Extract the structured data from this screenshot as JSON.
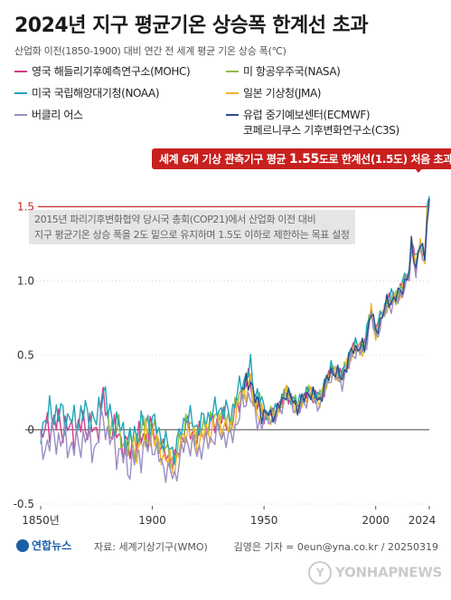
{
  "header": {
    "title": "2024년 지구 평균기온 상승폭 한계선 초과",
    "subtitle": "산업화 이전(1850-1900) 대비 연간 전 세계 평균 기온 상승 폭(℃)"
  },
  "legend": [
    {
      "label": "영국 해들리기후예측연구소(MOHC)",
      "color": "#d6398c"
    },
    {
      "label": "미 항공우주국(NASA)",
      "color": "#8fbd4a"
    },
    {
      "label": "미국 국립해양대기청(NOAA)",
      "color": "#1fa6b8"
    },
    {
      "label": "일본 기상청(JMA)",
      "color": "#f0b429"
    },
    {
      "label": "버클리 어스",
      "color": "#9b8ec4"
    },
    {
      "label": "유럽 중기예보센터(ECMWF)",
      "label2": "코페르니쿠스 기후변화연구소(C3S)",
      "color": "#2a4f8e"
    }
  ],
  "callout": {
    "pre": "세계 6개 기상 관측기구 평균 ",
    "value": "1.55",
    "post": "도로 한계선(1.5도) 처음 초과"
  },
  "note": {
    "line1": "2015년 파리기후변화협약 당시국 총회(COP21)에서 산업화 이전 대비",
    "line2": "지구 평균기온 상승 폭을 2도 밑으로 유지하며 1.5도 이하로 제한하는 목표 설정"
  },
  "footer": {
    "logo": "연합뉴스",
    "source": "자료: 세계기상기구(WMO)",
    "credit": "김영은 기자 = 0eun@yna.co.kr / 20250319",
    "watermark": "YONHAPNEWS"
  },
  "chart_data": {
    "type": "line",
    "x_range": [
      1850,
      2024
    ],
    "ylim": [
      -0.5,
      1.6
    ],
    "y_ticks": [
      {
        "value": 1.5,
        "label": "1.5"
      },
      {
        "value": 1.0,
        "label": "1.0"
      },
      {
        "value": 0.5,
        "label": "0.5"
      },
      {
        "value": 0.0,
        "label": "0"
      },
      {
        "value": -0.5,
        "label": "-0.5"
      }
    ],
    "x_ticks": [
      {
        "value": 1850,
        "label": "1850년"
      },
      {
        "value": 1900,
        "label": "1900"
      },
      {
        "value": 1950,
        "label": "1950"
      },
      {
        "value": 2000,
        "label": "2000"
      },
      {
        "value": 2024,
        "label": "2024"
      }
    ],
    "threshold": {
      "value": 1.5,
      "color": "#c8201e"
    },
    "base_series": {
      "x": [
        1850,
        1855,
        1860,
        1865,
        1870,
        1875,
        1878,
        1880,
        1885,
        1890,
        1895,
        1900,
        1905,
        1910,
        1915,
        1920,
        1925,
        1930,
        1935,
        1940,
        1944,
        1945,
        1950,
        1955,
        1960,
        1965,
        1970,
        1975,
        1980,
        1985,
        1990,
        1995,
        1998,
        2000,
        2005,
        2010,
        2015,
        2016,
        2018,
        2020,
        2022,
        2023,
        2024
      ],
      "values": [
        -0.05,
        0.05,
        0.03,
        -0.02,
        0.05,
        -0.03,
        0.22,
        0.05,
        -0.05,
        -0.15,
        -0.05,
        0.0,
        -0.15,
        -0.22,
        0.03,
        -0.05,
        0.02,
        0.08,
        0.03,
        0.25,
        0.35,
        0.22,
        0.1,
        0.1,
        0.25,
        0.15,
        0.25,
        0.2,
        0.4,
        0.35,
        0.55,
        0.55,
        0.8,
        0.65,
        0.85,
        0.9,
        1.05,
        1.25,
        1.1,
        1.25,
        1.15,
        1.45,
        1.55
      ]
    },
    "series": [
      {
        "name": "영국 해들리기후예측연구소(MOHC)",
        "color": "#d6398c",
        "start": 1850,
        "offset": 0.0
      },
      {
        "name": "미 항공우주국(NASA)",
        "color": "#8fbd4a",
        "start": 1880,
        "offset": 0.02
      },
      {
        "name": "미국 국립해양대기청(NOAA)",
        "color": "#1fa6b8",
        "start": 1850,
        "offset": 0.07
      },
      {
        "name": "일본 기상청(JMA)",
        "color": "#f0b429",
        "start": 1891,
        "offset": -0.03
      },
      {
        "name": "버클리 어스",
        "color": "#9b8ec4",
        "start": 1850,
        "offset": -0.1
      },
      {
        "name": "유럽 중기예보센터(ECMWF)",
        "color": "#2a4f8e",
        "start": 1940,
        "offset": 0.01
      }
    ]
  }
}
